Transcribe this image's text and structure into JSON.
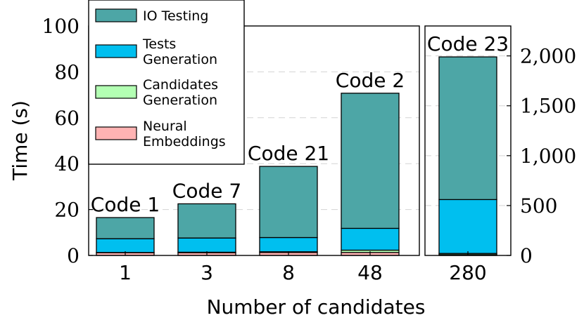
{
  "chart_data": {
    "type": "bar",
    "stacked": true,
    "xlabel": "Number of candidates",
    "ylabel": "Time (s)",
    "series_names": [
      "IO Testing",
      "Tests Generation",
      "Candidates Generation",
      "Neural Embeddings"
    ],
    "colors": {
      "IO Testing": "#4da6a6",
      "Tests Generation": "#00bfef",
      "Candidates Generation": "#b3ffb3",
      "Neural Embeddings": "#ffb3b3"
    },
    "legend": {
      "placement": "top-left",
      "entries": [
        {
          "series": "IO Testing",
          "lines": [
            "IO Testing"
          ]
        },
        {
          "series": "Tests Generation",
          "lines": [
            "Tests",
            "Generation"
          ]
        },
        {
          "series": "Candidates Generation",
          "lines": [
            "Candidates",
            "Generation"
          ]
        },
        {
          "series": "Neural Embeddings",
          "lines": [
            "Neural",
            "Embeddings"
          ]
        }
      ]
    },
    "panels": [
      {
        "name": "left",
        "ylim": [
          0,
          100
        ],
        "yticks": [
          0,
          20,
          40,
          60,
          80,
          100
        ],
        "ytick_side": "left",
        "grid": true,
        "categories": [
          "1",
          "3",
          "8",
          "48"
        ],
        "annotations": [
          "Code 1",
          "Code 7",
          "Code 21",
          "Code 2"
        ],
        "series": [
          {
            "name": "Neural Embeddings",
            "values": [
              1.2,
              1.2,
              1.3,
              1.3
            ]
          },
          {
            "name": "Candidates Generation",
            "values": [
              0.1,
              0.2,
              0.3,
              1.0
            ]
          },
          {
            "name": "Tests Generation",
            "values": [
              6.0,
              6.2,
              6.2,
              9.5
            ]
          },
          {
            "name": "IO Testing",
            "values": [
              9.2,
              14.9,
              31.0,
              58.9
            ]
          }
        ]
      },
      {
        "name": "right",
        "ylim": [
          0,
          2300
        ],
        "yticks": [
          0,
          500,
          1000,
          1500,
          2000
        ],
        "ytick_labels": [
          "0",
          "500",
          "1,000",
          "1,500",
          "2,000"
        ],
        "ytick_side": "right",
        "grid": true,
        "categories": [
          "280"
        ],
        "annotations": [
          "Code 23"
        ],
        "series": [
          {
            "name": "Neural Embeddings",
            "values": [
              8
            ]
          },
          {
            "name": "Candidates Generation",
            "values": [
              12
            ]
          },
          {
            "name": "Tests Generation",
            "values": [
              540
            ]
          },
          {
            "name": "IO Testing",
            "values": [
              1430
            ]
          }
        ]
      }
    ]
  }
}
